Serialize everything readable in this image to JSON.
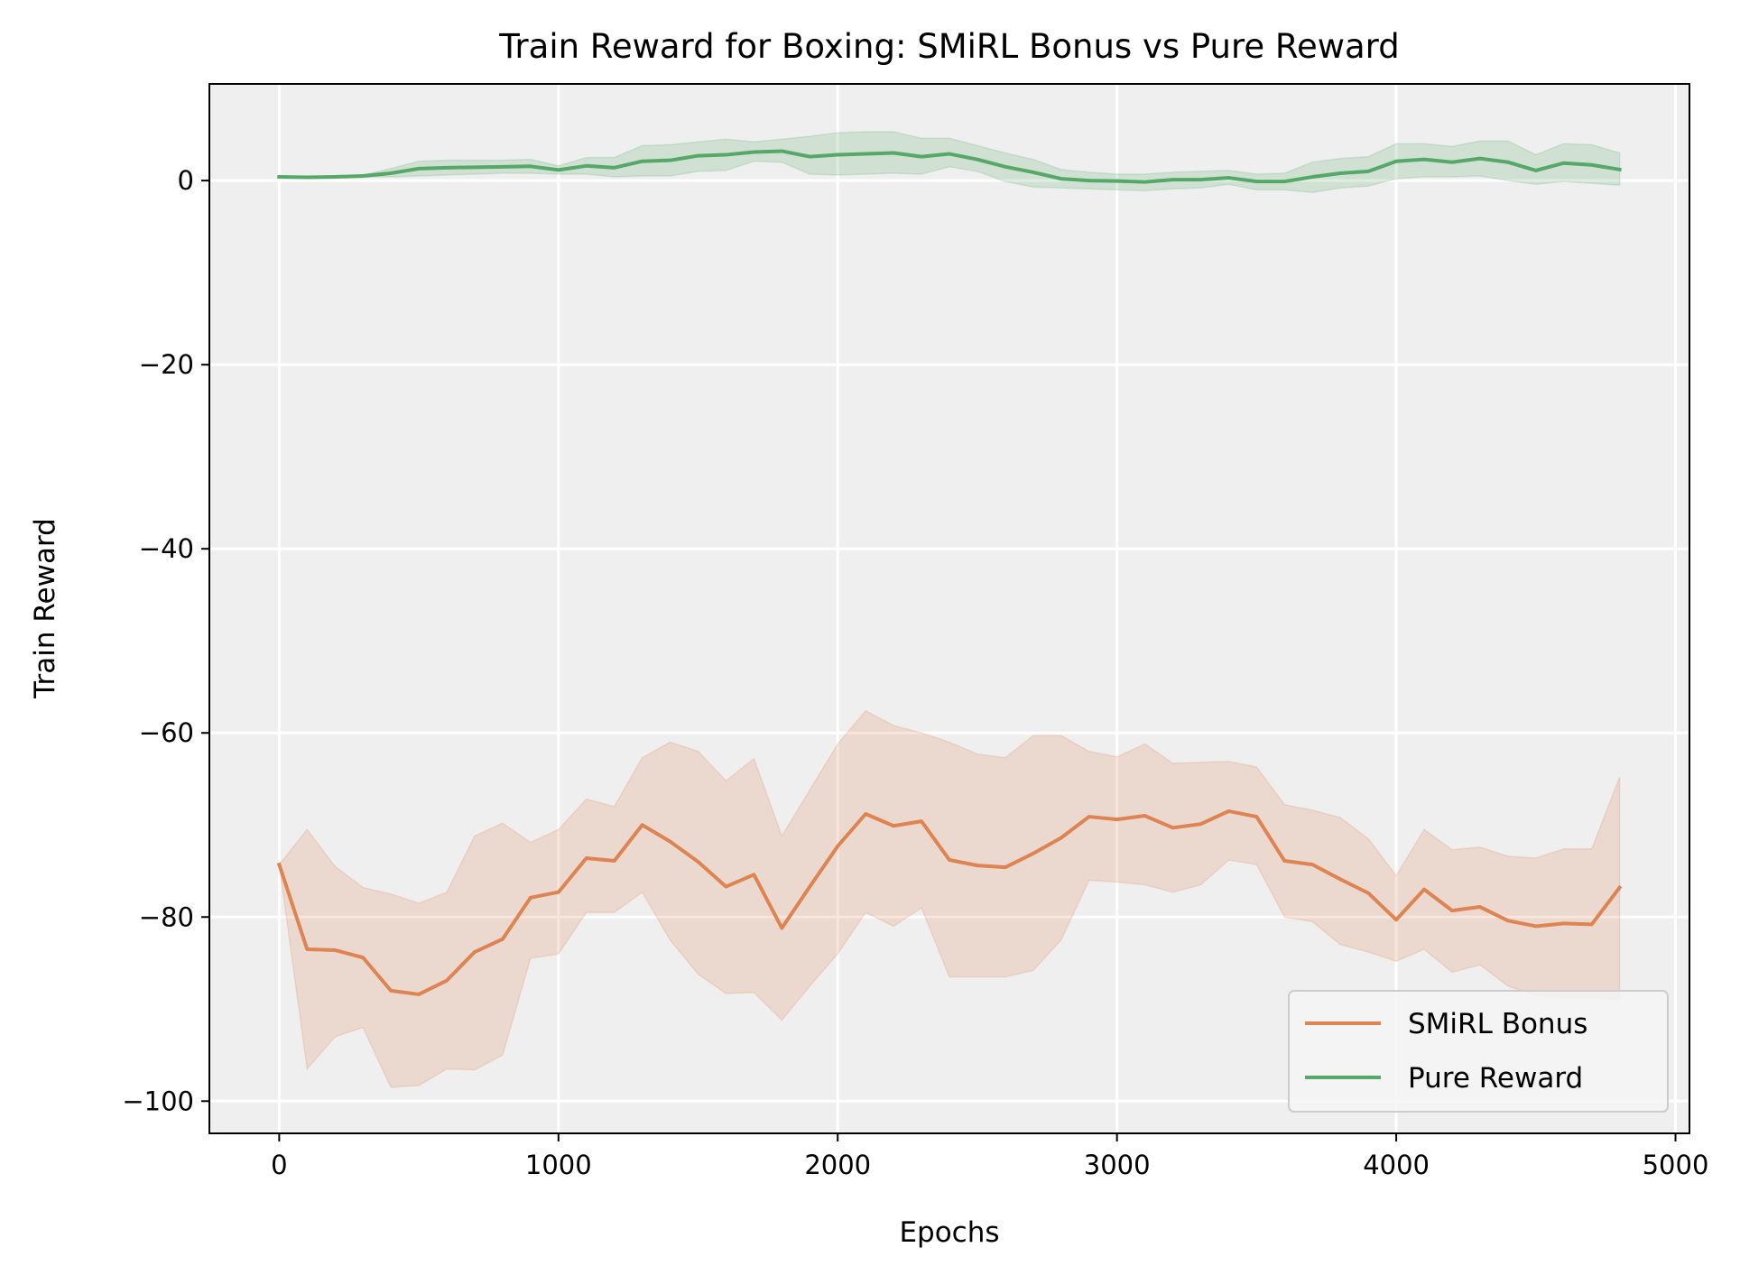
{
  "chart_data": {
    "type": "line",
    "title": "Train Reward for Boxing: SMiRL Bonus vs Pure Reward",
    "xlabel": "Epochs",
    "ylabel": "Train Reward",
    "xlim": [
      -250,
      5050
    ],
    "ylim": [
      -103.5,
      10.5
    ],
    "xticks": [
      0,
      1000,
      2000,
      3000,
      4000,
      5000
    ],
    "xtick_labels": [
      "0",
      "1000",
      "2000",
      "3000",
      "4000",
      "5000"
    ],
    "yticks": [
      0,
      -20,
      -40,
      -60,
      -80,
      -100
    ],
    "ytick_labels": [
      "0",
      "−20",
      "−40",
      "−60",
      "−80",
      "−100"
    ],
    "grid": true,
    "legend_position": "bottom-right",
    "background_color": "#efefef",
    "x": [
      0,
      100,
      200,
      300,
      400,
      500,
      600,
      700,
      800,
      900,
      1000,
      1100,
      1200,
      1300,
      1400,
      1500,
      1600,
      1700,
      1800,
      1900,
      2000,
      2100,
      2200,
      2300,
      2400,
      2500,
      2600,
      2700,
      2800,
      2900,
      3000,
      3100,
      3200,
      3300,
      3400,
      3500,
      3600,
      3700,
      3800,
      3900,
      4000,
      4100,
      4200,
      4300,
      4400,
      4500,
      4600,
      4700,
      4800
    ],
    "series": [
      {
        "name": "SMiRL Bonus",
        "color": "#dd8452",
        "values": [
          -74.3,
          -83.5,
          -83.6,
          -84.4,
          -88.0,
          -88.4,
          -86.9,
          -83.8,
          -82.4,
          -77.9,
          -77.3,
          -73.6,
          -73.9,
          -70.0,
          -71.8,
          -74.0,
          -76.7,
          -75.4,
          -81.2,
          -76.7,
          -72.3,
          -68.8,
          -70.1,
          -69.6,
          -73.8,
          -74.4,
          -74.6,
          -73.1,
          -71.4,
          -69.1,
          -69.4,
          -69.0,
          -70.3,
          -69.9,
          -68.5,
          -69.1,
          -73.9,
          -74.3,
          -75.9,
          -77.4,
          -80.3,
          -77.0,
          -79.3,
          -78.9,
          -80.4,
          -81.0,
          -80.7,
          -80.8,
          -76.8
        ],
        "lower": [
          -74.3,
          -96.5,
          -93.0,
          -92.0,
          -98.5,
          -98.3,
          -96.5,
          -96.6,
          -95.0,
          -84.5,
          -84.0,
          -79.5,
          -79.5,
          -77.3,
          -82.5,
          -86.2,
          -88.3,
          -88.2,
          -91.2,
          -87.5,
          -84.0,
          -79.5,
          -81.0,
          -79.0,
          -86.5,
          -86.5,
          -86.5,
          -85.8,
          -82.5,
          -76.0,
          -76.2,
          -76.5,
          -77.3,
          -76.5,
          -73.8,
          -74.3,
          -80.0,
          -80.5,
          -83.0,
          -83.8,
          -84.8,
          -83.5,
          -86.0,
          -85.2,
          -87.5,
          -88.5,
          -88.8,
          -88.8,
          -89.0
        ],
        "upper": [
          -74.3,
          -70.5,
          -74.5,
          -76.8,
          -77.5,
          -78.5,
          -77.3,
          -71.2,
          -69.8,
          -71.9,
          -70.5,
          -67.2,
          -68.0,
          -62.7,
          -61.0,
          -62.0,
          -65.2,
          -62.8,
          -71.2,
          -66.2,
          -61.2,
          -57.6,
          -59.2,
          -60.0,
          -61.0,
          -62.3,
          -62.7,
          -60.3,
          -60.3,
          -62.0,
          -62.6,
          -61.2,
          -63.3,
          -63.2,
          -63.1,
          -63.7,
          -67.8,
          -68.4,
          -69.2,
          -71.5,
          -75.5,
          -70.5,
          -72.7,
          -72.4,
          -73.4,
          -73.6,
          -72.6,
          -72.6,
          -64.8
        ]
      },
      {
        "name": "Pure Reward",
        "color": "#55a868",
        "values": [
          0.4,
          0.35,
          0.4,
          0.5,
          0.8,
          1.3,
          1.4,
          1.45,
          1.5,
          1.55,
          1.15,
          1.6,
          1.4,
          2.1,
          2.2,
          2.7,
          2.8,
          3.1,
          3.2,
          2.6,
          2.8,
          2.9,
          3.0,
          2.6,
          2.9,
          2.3,
          1.5,
          0.9,
          0.2,
          0.0,
          -0.05,
          -0.15,
          0.1,
          0.1,
          0.3,
          -0.1,
          -0.1,
          0.4,
          0.8,
          1.0,
          2.1,
          2.3,
          2.0,
          2.4,
          2.0,
          1.1,
          1.9,
          1.7,
          1.2
        ],
        "lower": [
          0.4,
          0.35,
          0.35,
          0.4,
          0.4,
          0.5,
          0.6,
          0.7,
          0.8,
          0.8,
          0.7,
          0.7,
          0.4,
          0.5,
          0.5,
          1.0,
          1.1,
          2.1,
          2.0,
          0.7,
          0.6,
          0.7,
          0.8,
          0.7,
          1.5,
          1.0,
          -0.1,
          -0.7,
          -0.8,
          -0.9,
          -1.0,
          -1.1,
          -0.9,
          -0.8,
          -0.4,
          -1.0,
          -1.0,
          -1.3,
          -0.8,
          -0.6,
          0.2,
          0.4,
          0.4,
          0.5,
          0.0,
          -0.4,
          -0.1,
          -0.3,
          -0.5
        ],
        "upper": [
          0.4,
          0.35,
          0.45,
          0.6,
          1.3,
          2.1,
          2.2,
          2.2,
          2.2,
          2.3,
          1.6,
          2.5,
          2.5,
          3.8,
          3.9,
          4.2,
          4.5,
          4.2,
          4.5,
          4.8,
          5.2,
          5.3,
          5.3,
          4.6,
          4.6,
          3.8,
          3.0,
          2.3,
          1.2,
          0.9,
          0.7,
          0.7,
          0.9,
          1.0,
          1.1,
          0.7,
          0.8,
          2.0,
          2.4,
          2.6,
          4.0,
          4.0,
          3.7,
          4.3,
          4.3,
          2.8,
          4.0,
          3.9,
          3.0
        ]
      }
    ]
  }
}
